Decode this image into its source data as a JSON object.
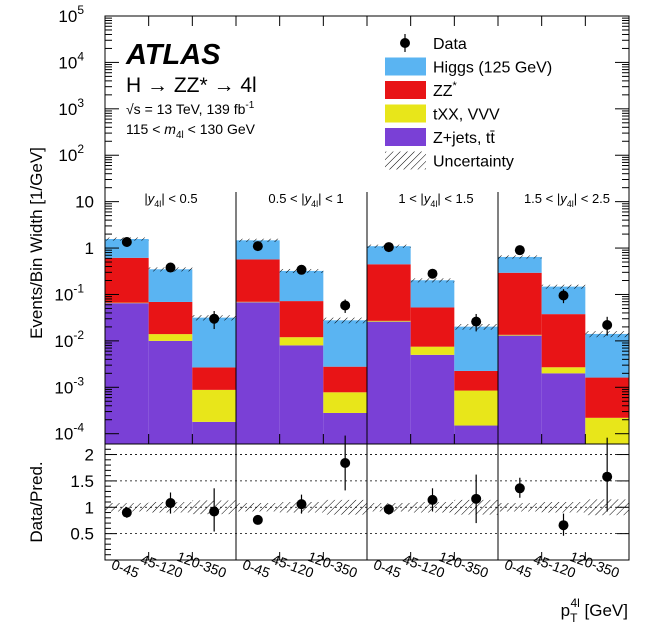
{
  "chart_data": {
    "type": "bar",
    "stacked": true,
    "y_scale": "log",
    "ylim": [
      6e-05,
      100000
    ],
    "ylabel": "Events/Bin Width [1/GeV]",
    "ratio_ylabel": "Data/Pred.",
    "ratio_ylim": [
      0,
      2.2
    ],
    "ratio_yticks": [
      "0.5",
      "1",
      "1.5",
      "2"
    ],
    "xlabel_main": "p",
    "xlabel_sub": "T",
    "xlabel_sup": "4l",
    "xlabel_unit": "[GeV]",
    "main_yticks": [
      {
        "label": "10",
        "sup": "-4",
        "value": 0.0001
      },
      {
        "label": "10",
        "sup": "-3",
        "value": 0.001
      },
      {
        "label": "10",
        "sup": "-2",
        "value": 0.01
      },
      {
        "label": "10",
        "sup": "-1",
        "value": 0.1
      },
      {
        "label": "1",
        "sup": "",
        "value": 1
      },
      {
        "label": "10",
        "sup": "",
        "value": 10
      },
      {
        "label": "10",
        "sup": "2",
        "value": 100
      },
      {
        "label": "10",
        "sup": "3",
        "value": 1000
      },
      {
        "label": "10",
        "sup": "4",
        "value": 10000
      },
      {
        "label": "10",
        "sup": "5",
        "value": 100000
      }
    ],
    "region_labels": [
      {
        "pre": "",
        "post": "< 0.5"
      },
      {
        "pre": "0.5 <",
        "post": "< 1"
      },
      {
        "pre": "1 <",
        "post": "< 1.5"
      },
      {
        "pre": "1.5 <",
        "post": "< 2.5"
      }
    ],
    "region_var": "y",
    "region_var_sub": "4l",
    "categories": [
      "0-45",
      "45-120",
      "120-350",
      "0-45",
      "45-120",
      "120-350",
      "0-45",
      "45-120",
      "120-350",
      "0-45",
      "45-120",
      "120-350"
    ],
    "series": [
      {
        "name": "Z+jets, tt̄",
        "color": "#7a40d6",
        "values": [
          0.065,
          0.01,
          0.00018,
          0.068,
          0.008,
          0.00028,
          0.026,
          0.005,
          0.00015,
          0.013,
          0.002,
          6e-05
        ]
      },
      {
        "name": "tXX, VVV",
        "color": "#e8e61a",
        "values": [
          0.0015,
          0.004,
          0.0007,
          0.0015,
          0.004,
          0.0005,
          0.001,
          0.0025,
          0.0007,
          0.0005,
          0.0007,
          0.00016
        ]
      },
      {
        "name": "ZZ*",
        "color": "#e81416",
        "values": [
          0.55,
          0.055,
          0.0018,
          0.5,
          0.06,
          0.002,
          0.42,
          0.045,
          0.0014,
          0.28,
          0.035,
          0.0014
        ]
      },
      {
        "name": "Higgs (125 GeV)",
        "color": "#5ab4f2",
        "values": [
          0.95,
          0.28,
          0.029,
          0.9,
          0.25,
          0.025,
          0.65,
          0.15,
          0.018,
          0.35,
          0.11,
          0.0125
        ]
      }
    ],
    "data": {
      "name": "Data",
      "values": [
        1.35,
        0.38,
        0.03,
        1.1,
        0.34,
        0.058,
        1.05,
        0.28,
        0.026,
        0.9,
        0.095,
        0.022
      ],
      "err_lo": [
        0.15,
        0.07,
        0.012,
        0.15,
        0.06,
        0.018,
        0.12,
        0.05,
        0.01,
        0.13,
        0.03,
        0.009
      ],
      "err_hi": [
        0.15,
        0.07,
        0.014,
        0.15,
        0.06,
        0.02,
        0.12,
        0.05,
        0.012,
        0.13,
        0.035,
        0.011
      ]
    },
    "ratio": {
      "values": [
        0.9,
        1.08,
        0.92,
        0.76,
        1.06,
        1.84,
        0.96,
        1.14,
        1.16,
        1.36,
        0.66,
        1.58
      ],
      "err_lo": [
        0.1,
        0.2,
        0.38,
        0.08,
        0.18,
        0.52,
        0.1,
        0.22,
        0.46,
        0.18,
        0.2,
        0.66
      ],
      "err_hi": [
        0.1,
        0.2,
        0.44,
        0.08,
        0.18,
        0.52,
        0.1,
        0.22,
        0.46,
        0.2,
        0.22,
        0.74
      ],
      "unc": [
        0.08,
        0.1,
        0.13,
        0.08,
        0.1,
        0.14,
        0.08,
        0.1,
        0.14,
        0.08,
        0.1,
        0.15
      ]
    },
    "legend": {
      "position": "top-right",
      "entries": [
        {
          "label": "Data",
          "kind": "marker"
        },
        {
          "label": "Higgs (125 GeV)",
          "kind": "fill",
          "color": "#5ab4f2"
        },
        {
          "label": "ZZ",
          "sup": "*",
          "kind": "fill",
          "color": "#e81416"
        },
        {
          "label": "tXX, VVV",
          "kind": "fill",
          "color": "#e8e61a"
        },
        {
          "label": "Z+jets, tt̄",
          "kind": "fill",
          "color": "#7a40d6"
        },
        {
          "label": "Uncertainty",
          "kind": "hatch"
        }
      ]
    },
    "annotations": {
      "experiment": "ATLAS",
      "process": "H → ZZ* → 4l",
      "sqrt_s": "√s = 13 TeV, 139 fb",
      "sqrt_s_sup": "-1",
      "mass_window_pre": "115 <",
      "mass_var": "m",
      "mass_var_sub": "4l",
      "mass_window_post": "< 130 GeV"
    }
  }
}
